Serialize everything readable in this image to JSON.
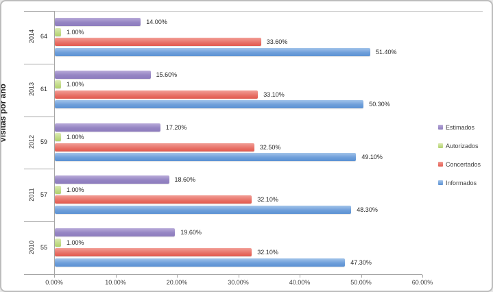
{
  "chart_data": {
    "type": "bar",
    "orientation": "horizontal",
    "title": "",
    "xlabel": "",
    "ylabel": "Visitas por año",
    "xlim": [
      0,
      60
    ],
    "grid": false,
    "x_tick_values": [
      0,
      10,
      20,
      30,
      40,
      50,
      60
    ],
    "x_tick_labels": [
      "0.00%",
      "10.00%",
      "20.00%",
      "30.00%",
      "40.00%",
      "50.00%",
      "60.00%"
    ],
    "categories": [
      {
        "year": "2014",
        "count": "64"
      },
      {
        "year": "2013",
        "count": "61"
      },
      {
        "year": "2012",
        "count": "59"
      },
      {
        "year": "2011",
        "count": "57"
      },
      {
        "year": "2010",
        "count": "55"
      }
    ],
    "series": [
      {
        "name": "Estimados",
        "color": "#9585c3",
        "color_top": "#b9abd9",
        "color_bottom": "#8d7bbd",
        "values": [
          14.0,
          15.6,
          17.2,
          18.6,
          19.6
        ],
        "labels": [
          "14.00%",
          "15.60%",
          "17.20%",
          "18.60%",
          "19.60%"
        ]
      },
      {
        "name": "Autorizados",
        "color": "#c3dc8b",
        "color_top": "#ddebb4",
        "color_bottom": "#b0d16c",
        "values": [
          1.0,
          1.0,
          1.0,
          1.0,
          1.0
        ],
        "labels": [
          "1.00%",
          "1.00%",
          "1.00%",
          "1.00%",
          "1.00%"
        ]
      },
      {
        "name": "Concertados",
        "color": "#e8746a",
        "color_top": "#f29e96",
        "color_bottom": "#e2594d",
        "values": [
          33.6,
          33.1,
          32.5,
          32.1,
          32.1
        ],
        "labels": [
          "33.60%",
          "33.10%",
          "32.50%",
          "32.10%",
          "32.10%"
        ]
      },
      {
        "name": "Informados",
        "color": "#6f9fda",
        "color_top": "#a3c4ea",
        "color_bottom": "#5b91d3",
        "values": [
          51.4,
          50.3,
          49.1,
          48.3,
          47.3
        ],
        "labels": [
          "51.40%",
          "50.30%",
          "49.10%",
          "48.30%",
          "47.30%"
        ]
      }
    ],
    "legend": {
      "position": "right",
      "items": [
        "Estimados",
        "Autorizados",
        "Concertados",
        "Informados"
      ]
    }
  }
}
